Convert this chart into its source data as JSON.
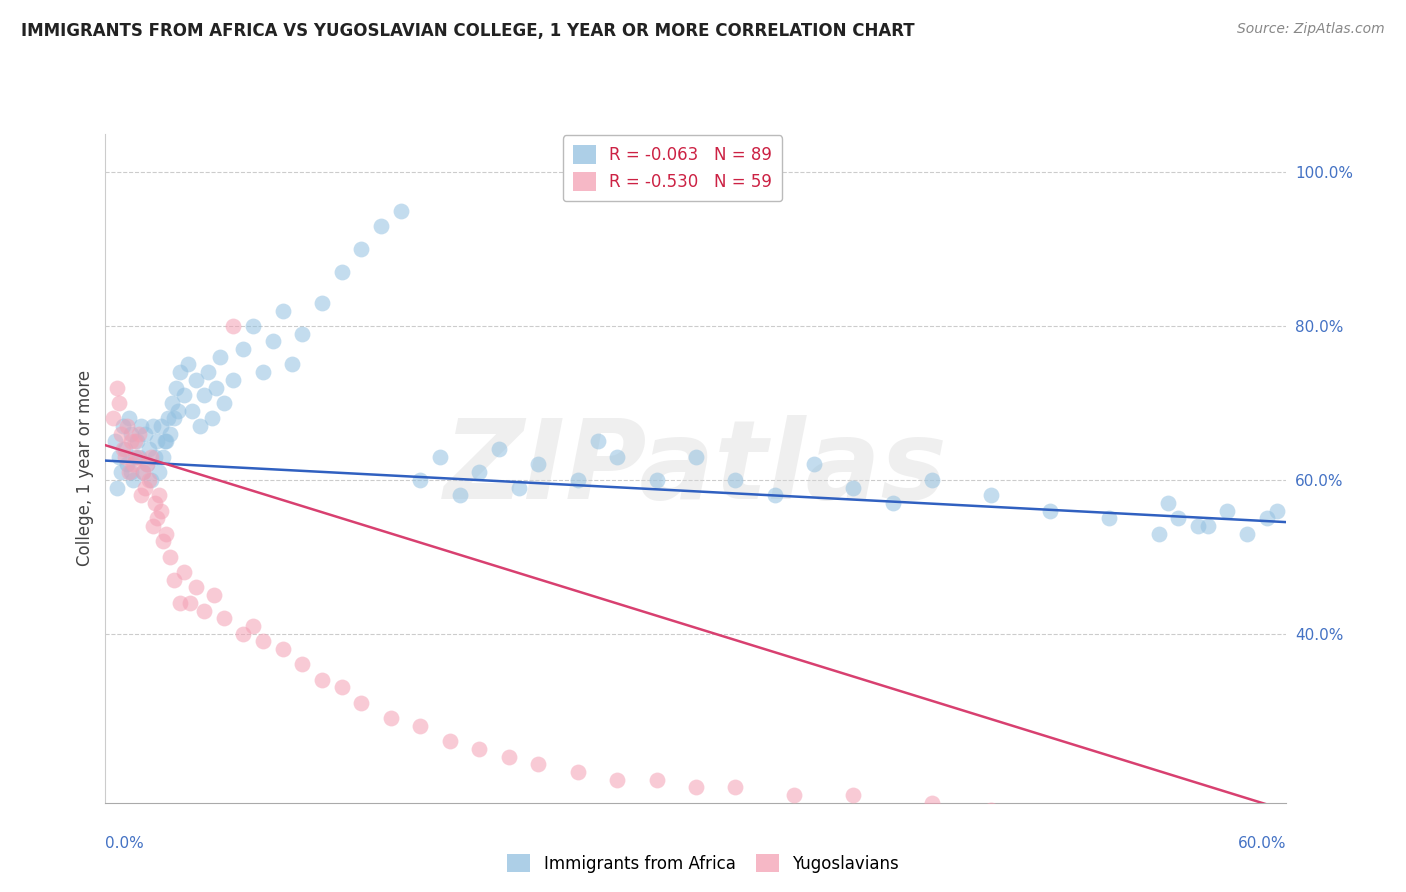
{
  "title": "IMMIGRANTS FROM AFRICA VS YUGOSLAVIAN COLLEGE, 1 YEAR OR MORE CORRELATION CHART",
  "source": "Source: ZipAtlas.com",
  "ylabel": "College, 1 year or more",
  "xlim": [
    0.0,
    0.6
  ],
  "ylim": [
    0.18,
    1.05
  ],
  "blue_color": "#92c0e0",
  "pink_color": "#f4a0b4",
  "blue_line_color": "#3060c0",
  "pink_line_color": "#d84070",
  "watermark": "ZIPatlas",
  "background_color": "#ffffff",
  "blue_R": -0.063,
  "blue_N": 89,
  "pink_R": -0.53,
  "pink_N": 59,
  "blue_line_x0": 0.0,
  "blue_line_y0": 0.625,
  "blue_line_x1": 0.6,
  "blue_line_y1": 0.545,
  "pink_line_x0": 0.0,
  "pink_line_y0": 0.645,
  "pink_line_x1": 0.6,
  "pink_line_y1": 0.17,
  "blue_x": [
    0.005,
    0.007,
    0.009,
    0.008,
    0.006,
    0.01,
    0.011,
    0.013,
    0.012,
    0.014,
    0.015,
    0.013,
    0.016,
    0.018,
    0.017,
    0.019,
    0.02,
    0.022,
    0.021,
    0.023,
    0.024,
    0.026,
    0.025,
    0.027,
    0.028,
    0.03,
    0.029,
    0.032,
    0.031,
    0.034,
    0.033,
    0.036,
    0.035,
    0.038,
    0.037,
    0.04,
    0.042,
    0.044,
    0.046,
    0.048,
    0.05,
    0.052,
    0.054,
    0.056,
    0.058,
    0.06,
    0.065,
    0.07,
    0.075,
    0.08,
    0.085,
    0.09,
    0.095,
    0.1,
    0.11,
    0.12,
    0.13,
    0.14,
    0.15,
    0.16,
    0.17,
    0.18,
    0.19,
    0.2,
    0.21,
    0.22,
    0.24,
    0.25,
    0.26,
    0.28,
    0.3,
    0.32,
    0.34,
    0.36,
    0.38,
    0.4,
    0.42,
    0.45,
    0.48,
    0.51,
    0.54,
    0.56,
    0.57,
    0.58,
    0.59,
    0.595,
    0.555,
    0.545,
    0.535
  ],
  "blue_y": [
    0.65,
    0.63,
    0.67,
    0.61,
    0.59,
    0.64,
    0.62,
    0.66,
    0.68,
    0.6,
    0.63,
    0.61,
    0.65,
    0.67,
    0.63,
    0.61,
    0.66,
    0.64,
    0.62,
    0.6,
    0.67,
    0.65,
    0.63,
    0.61,
    0.67,
    0.65,
    0.63,
    0.68,
    0.65,
    0.7,
    0.66,
    0.72,
    0.68,
    0.74,
    0.69,
    0.71,
    0.75,
    0.69,
    0.73,
    0.67,
    0.71,
    0.74,
    0.68,
    0.72,
    0.76,
    0.7,
    0.73,
    0.77,
    0.8,
    0.74,
    0.78,
    0.82,
    0.75,
    0.79,
    0.83,
    0.87,
    0.9,
    0.93,
    0.95,
    0.6,
    0.63,
    0.58,
    0.61,
    0.64,
    0.59,
    0.62,
    0.6,
    0.65,
    0.63,
    0.6,
    0.63,
    0.6,
    0.58,
    0.62,
    0.59,
    0.57,
    0.6,
    0.58,
    0.56,
    0.55,
    0.57,
    0.54,
    0.56,
    0.53,
    0.55,
    0.56,
    0.54,
    0.55,
    0.53
  ],
  "pink_x": [
    0.004,
    0.006,
    0.008,
    0.007,
    0.009,
    0.011,
    0.01,
    0.013,
    0.012,
    0.015,
    0.014,
    0.017,
    0.016,
    0.019,
    0.018,
    0.021,
    0.02,
    0.023,
    0.022,
    0.025,
    0.024,
    0.027,
    0.026,
    0.029,
    0.028,
    0.031,
    0.033,
    0.035,
    0.038,
    0.04,
    0.043,
    0.046,
    0.05,
    0.055,
    0.06,
    0.065,
    0.07,
    0.075,
    0.08,
    0.09,
    0.1,
    0.11,
    0.12,
    0.13,
    0.145,
    0.16,
    0.175,
    0.19,
    0.205,
    0.22,
    0.24,
    0.26,
    0.28,
    0.3,
    0.32,
    0.35,
    0.38,
    0.42,
    0.45
  ],
  "pink_y": [
    0.68,
    0.72,
    0.66,
    0.7,
    0.64,
    0.67,
    0.63,
    0.65,
    0.61,
    0.65,
    0.62,
    0.66,
    0.63,
    0.61,
    0.58,
    0.62,
    0.59,
    0.63,
    0.6,
    0.57,
    0.54,
    0.58,
    0.55,
    0.52,
    0.56,
    0.53,
    0.5,
    0.47,
    0.44,
    0.48,
    0.44,
    0.46,
    0.43,
    0.45,
    0.42,
    0.8,
    0.4,
    0.41,
    0.39,
    0.38,
    0.36,
    0.34,
    0.33,
    0.31,
    0.29,
    0.28,
    0.26,
    0.25,
    0.24,
    0.23,
    0.22,
    0.21,
    0.21,
    0.2,
    0.2,
    0.19,
    0.19,
    0.18,
    0.17
  ]
}
